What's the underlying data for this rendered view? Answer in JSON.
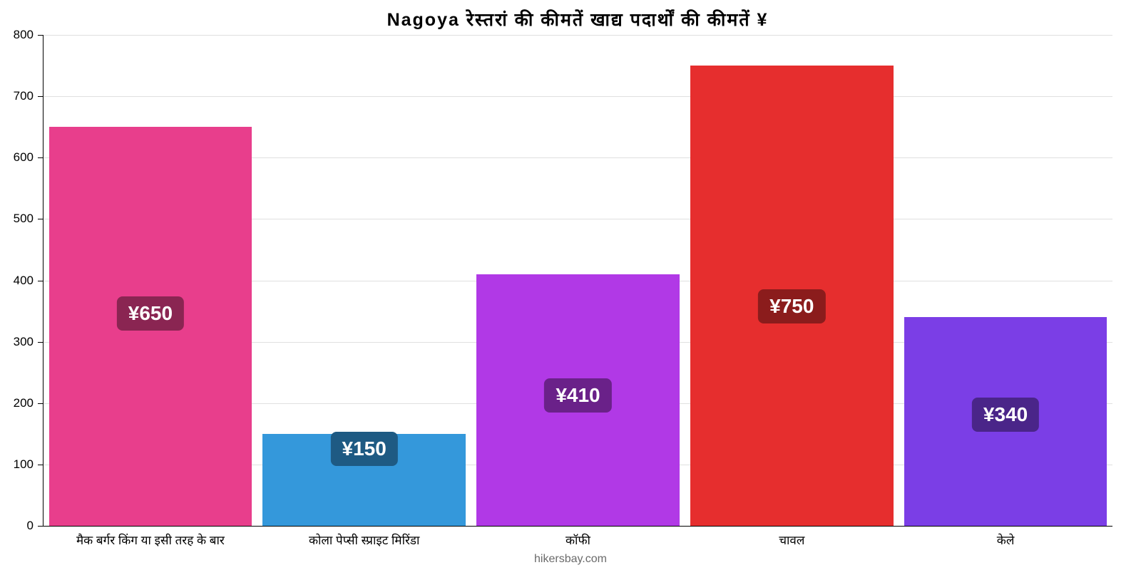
{
  "chart": {
    "type": "bar",
    "title": "Nagoya रेस्तरां की कीमतें खाद्य पदार्थों की कीमतें ¥",
    "title_fontsize": 25,
    "background_color": "#ffffff",
    "grid_color": "#e0e0e0",
    "axis_color": "#000000",
    "text_color": "#000000",
    "attribution": "hikersbay.com",
    "attribution_color": "#6a6a6a",
    "ylim": [
      0,
      800
    ],
    "ytick_step": 100,
    "yticks": [
      0,
      100,
      200,
      300,
      400,
      500,
      600,
      700,
      800
    ],
    "bar_width": 0.95,
    "categories": [
      "मैक बर्गर किंग या इसी तरह के बार",
      "कोला पेप्सी स्प्राइट मिरिंडा",
      "कॉफी",
      "चावल",
      "केले"
    ],
    "values": [
      650,
      150,
      410,
      750,
      340
    ],
    "value_labels": [
      "¥650",
      "¥150",
      "¥410",
      "¥750",
      "¥340"
    ],
    "bar_colors": [
      "#e83e8c",
      "#3498db",
      "#b139e6",
      "#e62e2e",
      "#7b3ee6"
    ],
    "badge_colors": [
      "#8a2552",
      "#1e5a83",
      "#6a2189",
      "#8b1c1c",
      "#4a2589"
    ],
    "label_fontsize": 17,
    "badge_fontsize": 28,
    "badge_positions_from_bottom_pct": [
      49,
      65,
      45,
      44,
      45
    ]
  }
}
